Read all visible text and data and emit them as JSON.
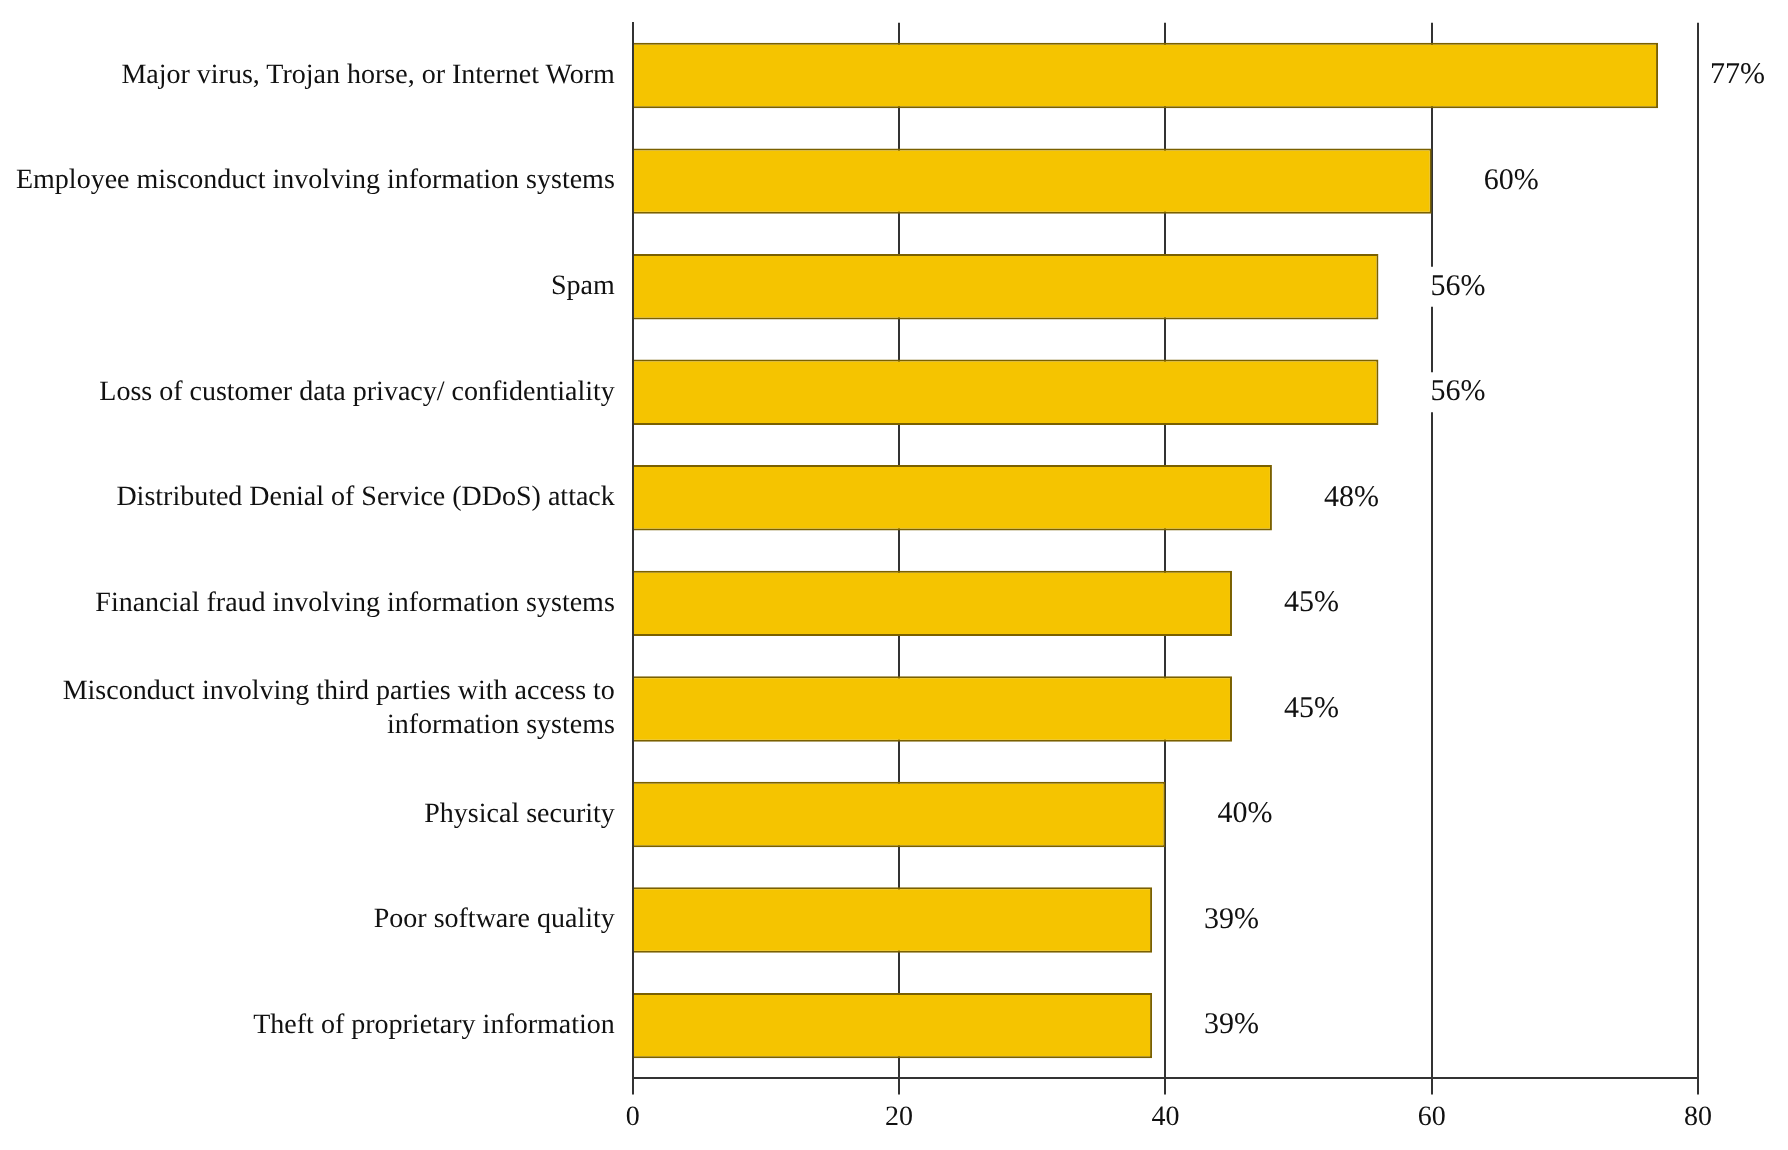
{
  "chart_data": {
    "type": "bar",
    "orientation": "horizontal",
    "categories": [
      "Major virus, Trojan horse, or Internet Worm",
      "Employee misconduct involving information systems",
      "Spam",
      "Loss of customer data privacy/ confidentiality",
      "Distributed Denial of Service (DDoS) attack",
      "Financial fraud involving information systems",
      "Misconduct involving third parties with access to information systems",
      "Physical security",
      "Poor software quality",
      "Theft of proprietary information"
    ],
    "values": [
      77,
      60,
      56,
      56,
      48,
      45,
      45,
      40,
      39,
      39
    ],
    "value_labels": [
      "77%",
      "60%",
      "56%",
      "56%",
      "48%",
      "45%",
      "45%",
      "40%",
      "39%",
      "39%"
    ],
    "color": "#f5c400",
    "xlim": [
      0,
      80
    ],
    "xticks": [
      0,
      20,
      40,
      60,
      80
    ],
    "grid": "x",
    "legend": false
  }
}
